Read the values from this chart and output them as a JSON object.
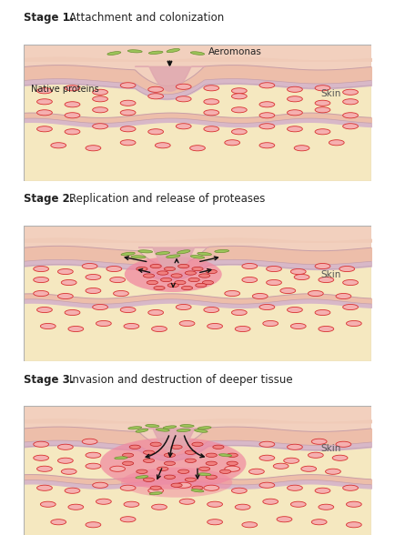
{
  "bg_white": "#ffffff",
  "tissue_yellow": "#f5e8c0",
  "skin_pink_top": "#f0d0c0",
  "skin_layer1": "#f2cbb5",
  "skin_layer2": "#e8c0b0",
  "skin_lavender": "#dbbcc8",
  "wound_pink": "#e8b0b8",
  "wound_dark": "#d4959a",
  "infection_pink": "#f090a8",
  "bacteria_fill": "#9dc55a",
  "bacteria_edge": "#6a9030",
  "circle_fill": "#f5b0b0",
  "circle_edge": "#d83030",
  "arrow_color": "#111111",
  "text_dark": "#222222",
  "text_gray": "#555555",
  "stage1_title": "Stage 1.",
  "stage1_desc": "Attachment and colonization",
  "stage2_title": "Stage 2.",
  "stage2_desc": "Replication and release of proteases",
  "stage3_title": "Stage 3.",
  "stage3_desc": "Invasion and destruction of deeper tissue",
  "label_aeromonas": "Aeromonas",
  "label_skin": "Skin",
  "label_native": "Native proteins",
  "title_fontsize": 8.5,
  "body_fontsize": 7.5,
  "label_fontsize": 7.0
}
